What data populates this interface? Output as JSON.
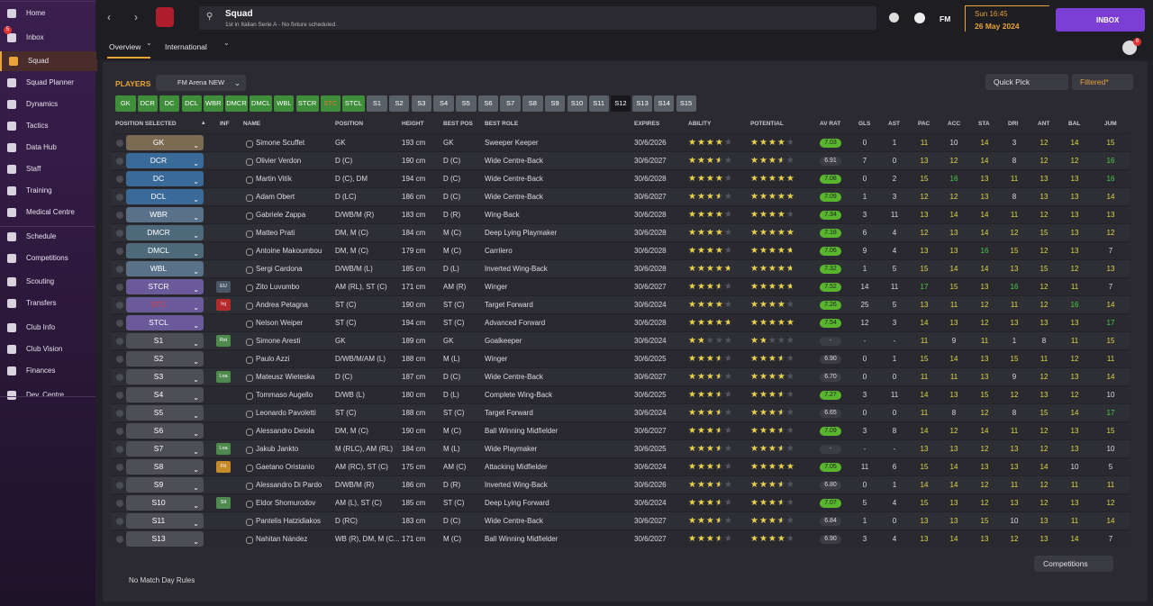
{
  "sidebar": {
    "items": [
      "Home",
      "Inbox",
      "Squad",
      "Squad Planner",
      "Dynamics",
      "Tactics",
      "Data Hub",
      "Staff",
      "Training",
      "Medical Centre",
      "Schedule",
      "Competitions",
      "Scouting",
      "Transfers",
      "Club Info",
      "Club Vision",
      "Finances",
      "Dev. Centre"
    ],
    "inbox_badge": 5,
    "active": 2
  },
  "header": {
    "title": "Squad",
    "subtitle": "1st in Italian Serie A - No fixture scheduled.",
    "fm": "FM",
    "time": "Sun 16:45",
    "date": "26 May 2024",
    "inbox": "INBOX",
    "badge": 8
  },
  "tabs": [
    "Overview",
    "International"
  ],
  "toolbar": {
    "label": "PLAYERS",
    "view": "FM Arena NEW",
    "quick_pick": "Quick Pick",
    "filter": "Filtered*"
  },
  "slots": [
    "GK",
    "DCR",
    "DC",
    "DCL",
    "WBR",
    "DMCR",
    "DMCL",
    "WBL",
    "STCR",
    "STC",
    "STCL",
    "S1",
    "S2",
    "S3",
    "S4",
    "S5",
    "S6",
    "S7",
    "S8",
    "S9",
    "S10",
    "S11",
    "S12",
    "S13",
    "S14",
    "S15"
  ],
  "table": {
    "columns": [
      "POSITION SELECTED",
      "INF",
      "NAME",
      "POSITION",
      "HEIGHT",
      "BEST POS",
      "BEST ROLE",
      "EXPIRES",
      "ABILITY",
      "POTENTIAL",
      "AV RAT",
      "GLS",
      "AST",
      "PAC",
      "ACC",
      "STA",
      "DRI",
      "ANT",
      "BAL",
      "JUM"
    ],
    "rows": [
      [
        "GK",
        null,
        "Simone Scuffet",
        "GK",
        "193 cm",
        "GK",
        "Sweeper Keeper",
        "30/6/2026",
        3.5,
        3.5,
        "7.03",
        0,
        1,
        11,
        10,
        14,
        3,
        12,
        14,
        15
      ],
      [
        "DCR",
        null,
        "Olivier Verdon",
        "D (C)",
        "190 cm",
        "D (C)",
        "Wide Centre-Back",
        "30/6/2027",
        3,
        3,
        "6.91",
        7,
        0,
        13,
        12,
        14,
        8,
        12,
        12,
        16
      ],
      [
        "DC",
        null,
        "Martin Vitík",
        "D (C), DM",
        "194 cm",
        "D (C)",
        "Wide Centre-Back",
        "30/6/2028",
        3.5,
        4.5,
        "7.08",
        0,
        2,
        15,
        16,
        13,
        11,
        13,
        13,
        16
      ],
      [
        "DCL",
        null,
        "Adam Obert",
        "D (LC)",
        "186 cm",
        "D (C)",
        "Wide Centre-Back",
        "30/6/2027",
        3,
        4.5,
        "7.09",
        1,
        3,
        12,
        12,
        13,
        8,
        13,
        13,
        14
      ],
      [
        "WBR",
        null,
        "Gabriele Zappa",
        "D/WB/M (R)",
        "183 cm",
        "D (R)",
        "Wing-Back",
        "30/6/2028",
        3.5,
        3.5,
        "7.34",
        3,
        11,
        13,
        14,
        14,
        11,
        12,
        13,
        13
      ],
      [
        "DMCR",
        null,
        "Matteo Prati",
        "DM, M (C)",
        "184 cm",
        "M (C)",
        "Deep Lying Playmaker",
        "30/6/2028",
        3.5,
        5,
        "7.18",
        6,
        4,
        12,
        13,
        14,
        12,
        15,
        13,
        12
      ],
      [
        "DMCL",
        null,
        "Antoine Makoumbou",
        "DM, M (C)",
        "179 cm",
        "M (C)",
        "Carrilero",
        "30/6/2028",
        3.5,
        4,
        "7.06",
        9,
        4,
        13,
        13,
        16,
        15,
        12,
        13,
        7
      ],
      [
        "WBL",
        null,
        "Sergi Cardona",
        "D/WB/M (L)",
        "185 cm",
        "D (L)",
        "Inverted Wing-Back",
        "30/6/2028",
        4,
        4,
        "7.32",
        1,
        5,
        15,
        14,
        14,
        13,
        15,
        12,
        13
      ],
      [
        "STCR",
        "EU",
        "Zito Luvumbo",
        "AM (RL), ST (C)",
        "171 cm",
        "AM (R)",
        "Winger",
        "30/6/2027",
        3,
        4,
        "7.52",
        14,
        11,
        17,
        15,
        13,
        16,
        12,
        11,
        7
      ],
      [
        "STC",
        "Inj",
        "Andrea Petagna",
        "ST (C)",
        "190 cm",
        "ST (C)",
        "Target Forward",
        "30/6/2024",
        3.5,
        3.5,
        "7.26",
        25,
        5,
        13,
        11,
        12,
        11,
        12,
        16,
        14
      ],
      [
        "STCL",
        null,
        "Nelson Weiper",
        "ST (C)",
        "194 cm",
        "ST (C)",
        "Advanced Forward",
        "30/6/2028",
        4,
        5,
        "7.54",
        12,
        3,
        14,
        13,
        12,
        13,
        13,
        13,
        17
      ],
      [
        "S1",
        "Rst",
        "Simone Aresti",
        "GK",
        "189 cm",
        "GK",
        "Goalkeeper",
        "30/6/2024",
        1.5,
        1.5,
        "-",
        "-",
        "-",
        11,
        9,
        11,
        1,
        8,
        11,
        15
      ],
      [
        "S2",
        null,
        "Paulo Azzi",
        "D/WB/M/AM (L)",
        "188 cm",
        "M (L)",
        "Winger",
        "30/6/2025",
        3,
        3,
        "6.90",
        0,
        1,
        15,
        14,
        13,
        15,
        11,
        12,
        11
      ],
      [
        "S3",
        "Loa",
        "Mateusz Wieteska",
        "D (C)",
        "187 cm",
        "D (C)",
        "Wide Centre-Back",
        "30/6/2027",
        3,
        3.5,
        "6.70",
        0,
        0,
        11,
        11,
        13,
        9,
        12,
        13,
        14
      ],
      [
        "S4",
        null,
        "Tommaso Augello",
        "D/WB (L)",
        "180 cm",
        "D (L)",
        "Complete Wing-Back",
        "30/6/2025",
        3,
        3,
        "7.27",
        3,
        11,
        14,
        13,
        15,
        12,
        13,
        12,
        10
      ],
      [
        "S5",
        null,
        "Leonardo Pavoletti",
        "ST (C)",
        "188 cm",
        "ST (C)",
        "Target Forward",
        "30/6/2024",
        3,
        3,
        "6.65",
        0,
        0,
        11,
        8,
        12,
        8,
        15,
        14,
        17
      ],
      [
        "S6",
        null,
        "Alessandro Deiola",
        "DM, M (C)",
        "190 cm",
        "M (C)",
        "Ball Winning Midfielder",
        "30/6/2027",
        3,
        3,
        "7.09",
        3,
        8,
        14,
        12,
        14,
        11,
        12,
        13,
        15
      ],
      [
        "S7",
        "Loa",
        "Jakub Jankto",
        "M (RLC), AM (RL)",
        "184 cm",
        "M (L)",
        "Wide Playmaker",
        "30/6/2025",
        3,
        3,
        "-",
        "-",
        "-",
        13,
        13,
        12,
        13,
        12,
        13,
        10
      ],
      [
        "S8",
        "Fit",
        "Gaetano Oristanio",
        "AM (RC), ST (C)",
        "175 cm",
        "AM (C)",
        "Attacking Midfielder",
        "30/6/2024",
        3,
        4.5,
        "7.05",
        11,
        6,
        15,
        14,
        13,
        13,
        14,
        10,
        5
      ],
      [
        "S9",
        null,
        "Alessandro Di Pardo",
        "D/WB/M (R)",
        "186 cm",
        "D (R)",
        "Inverted Wing-Back",
        "30/6/2026",
        3,
        3,
        "6.80",
        0,
        1,
        14,
        14,
        12,
        11,
        12,
        11,
        11
      ],
      [
        "S10",
        "Slt",
        "Eldor Shomurodov",
        "AM (L), ST (C)",
        "185 cm",
        "ST (C)",
        "Deep Lying Forward",
        "30/6/2024",
        3,
        3,
        "7.07",
        5,
        4,
        15,
        13,
        12,
        13,
        12,
        13,
        12
      ],
      [
        "S11",
        null,
        "Pantelis Hatzidiakos",
        "D (RC)",
        "183 cm",
        "D (C)",
        "Wide Centre-Back",
        "30/6/2027",
        3,
        3,
        "6.84",
        1,
        0,
        13,
        13,
        15,
        10,
        13,
        11,
        14
      ],
      [
        "S13",
        null,
        "Nahitan Nández",
        "WB (R), DM, M (C...",
        "171 cm",
        "M (C)",
        "Ball Winning Midfielder",
        "30/6/2027",
        3,
        3.5,
        "6.90",
        3,
        4,
        13,
        14,
        13,
        12,
        13,
        14,
        7
      ]
    ]
  },
  "footer": {
    "rules": "No Match Day Rules",
    "competitions": "Competitions"
  }
}
